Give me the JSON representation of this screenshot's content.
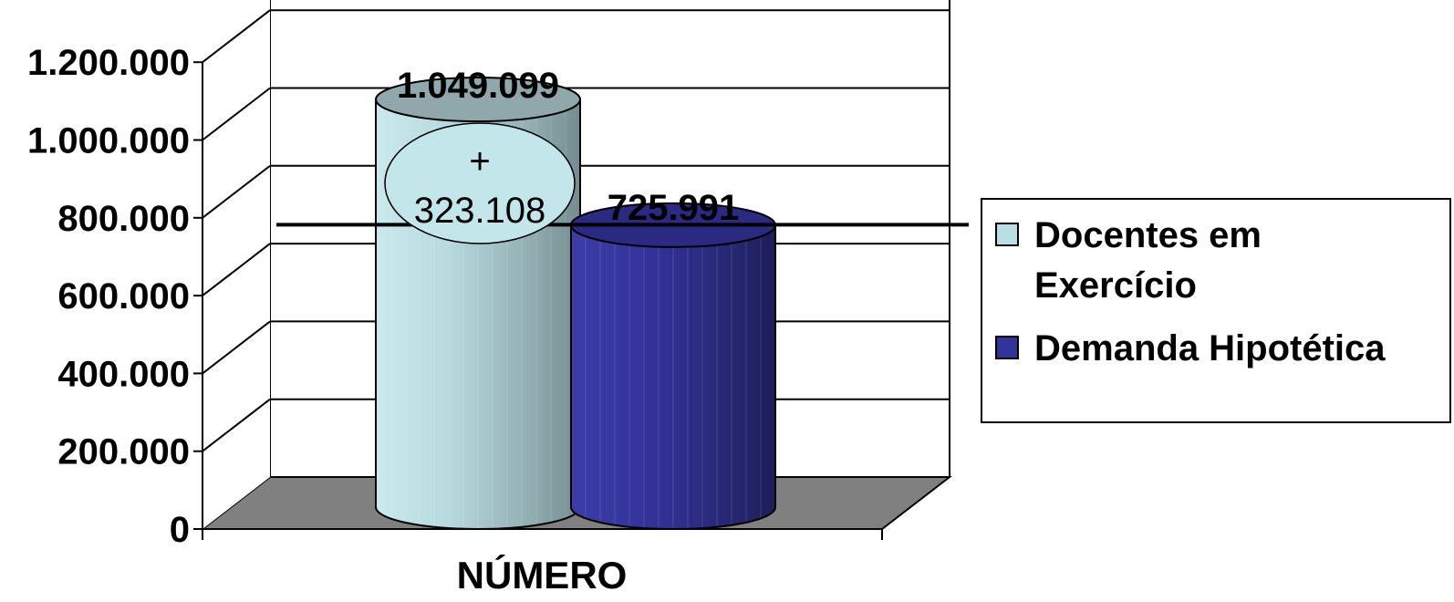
{
  "chart_data": {
    "type": "bar",
    "style": "3d-cylinder",
    "categories": [
      "NÚMERO"
    ],
    "series": [
      {
        "name": "Docentes em Exercício",
        "values": [
          1049099
        ],
        "label": "1.049.099",
        "color": "#b9dee3"
      },
      {
        "name": "Demanda Hipotética",
        "values": [
          725991
        ],
        "label": "725.991",
        "color": "#33339a"
      }
    ],
    "ylim": [
      0,
      1200000
    ],
    "yticks": [
      0,
      200000,
      400000,
      600000,
      800000,
      1000000,
      1200000
    ],
    "ytick_labels": [
      "0",
      "200.000",
      "400.000",
      "600.000",
      "800.000",
      "1.000.000",
      "1.200.000"
    ],
    "reference_line": 725991,
    "callout": {
      "line1": "+",
      "line2": "323.108"
    },
    "legend": {
      "position": "right",
      "items": [
        {
          "line1": "Docentes em",
          "line2": "Exercício"
        },
        {
          "line1": "Demanda Hipotética",
          "line2": ""
        }
      ]
    },
    "grid": true,
    "floor_color": "#808080"
  }
}
